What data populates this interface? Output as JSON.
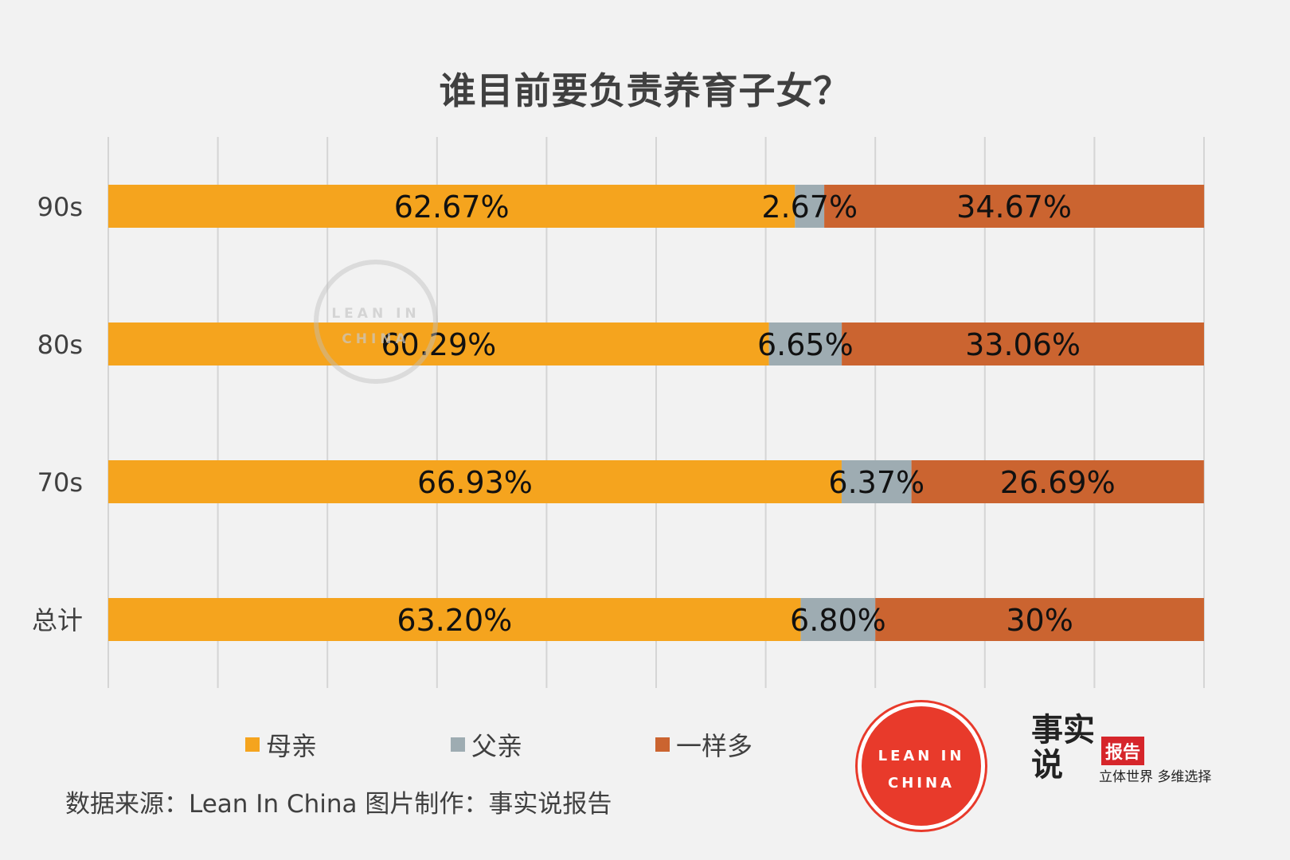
{
  "chart_data": {
    "type": "bar",
    "orientation": "horizontal",
    "stacked": true,
    "title": "谁目前要负责养育子女？",
    "categories": [
      "90s",
      "80s",
      "70s",
      "总计"
    ],
    "series": [
      {
        "name": "母亲",
        "color": "#f5a41e",
        "values": [
          62.67,
          60.29,
          66.93,
          63.2
        ],
        "labels": [
          "62.67%",
          "60.29%",
          "66.93%",
          "63.20%"
        ]
      },
      {
        "name": "父亲",
        "color": "#9eacb2",
        "values": [
          2.67,
          6.65,
          6.37,
          6.8
        ],
        "labels": [
          "2.67%",
          "6.65%",
          "6.37%",
          "6.80%"
        ]
      },
      {
        "name": "一样多",
        "color": "#cb6430",
        "values": [
          34.67,
          33.06,
          26.69,
          30
        ],
        "labels": [
          "34.67%",
          "33.06%",
          "26.69%",
          "30%"
        ]
      }
    ],
    "xlim": [
      0,
      100
    ],
    "grid": true,
    "legend": "bottom"
  },
  "source_note": "数据来源：Lean In China  图片制作：事实说报告",
  "logos": {
    "leanin_line1": "LEAN IN",
    "leanin_line2": "CHINA",
    "fact_brush": "事实说",
    "fact_badge": "报告",
    "fact_slogan": "立体世界 多维选择"
  }
}
